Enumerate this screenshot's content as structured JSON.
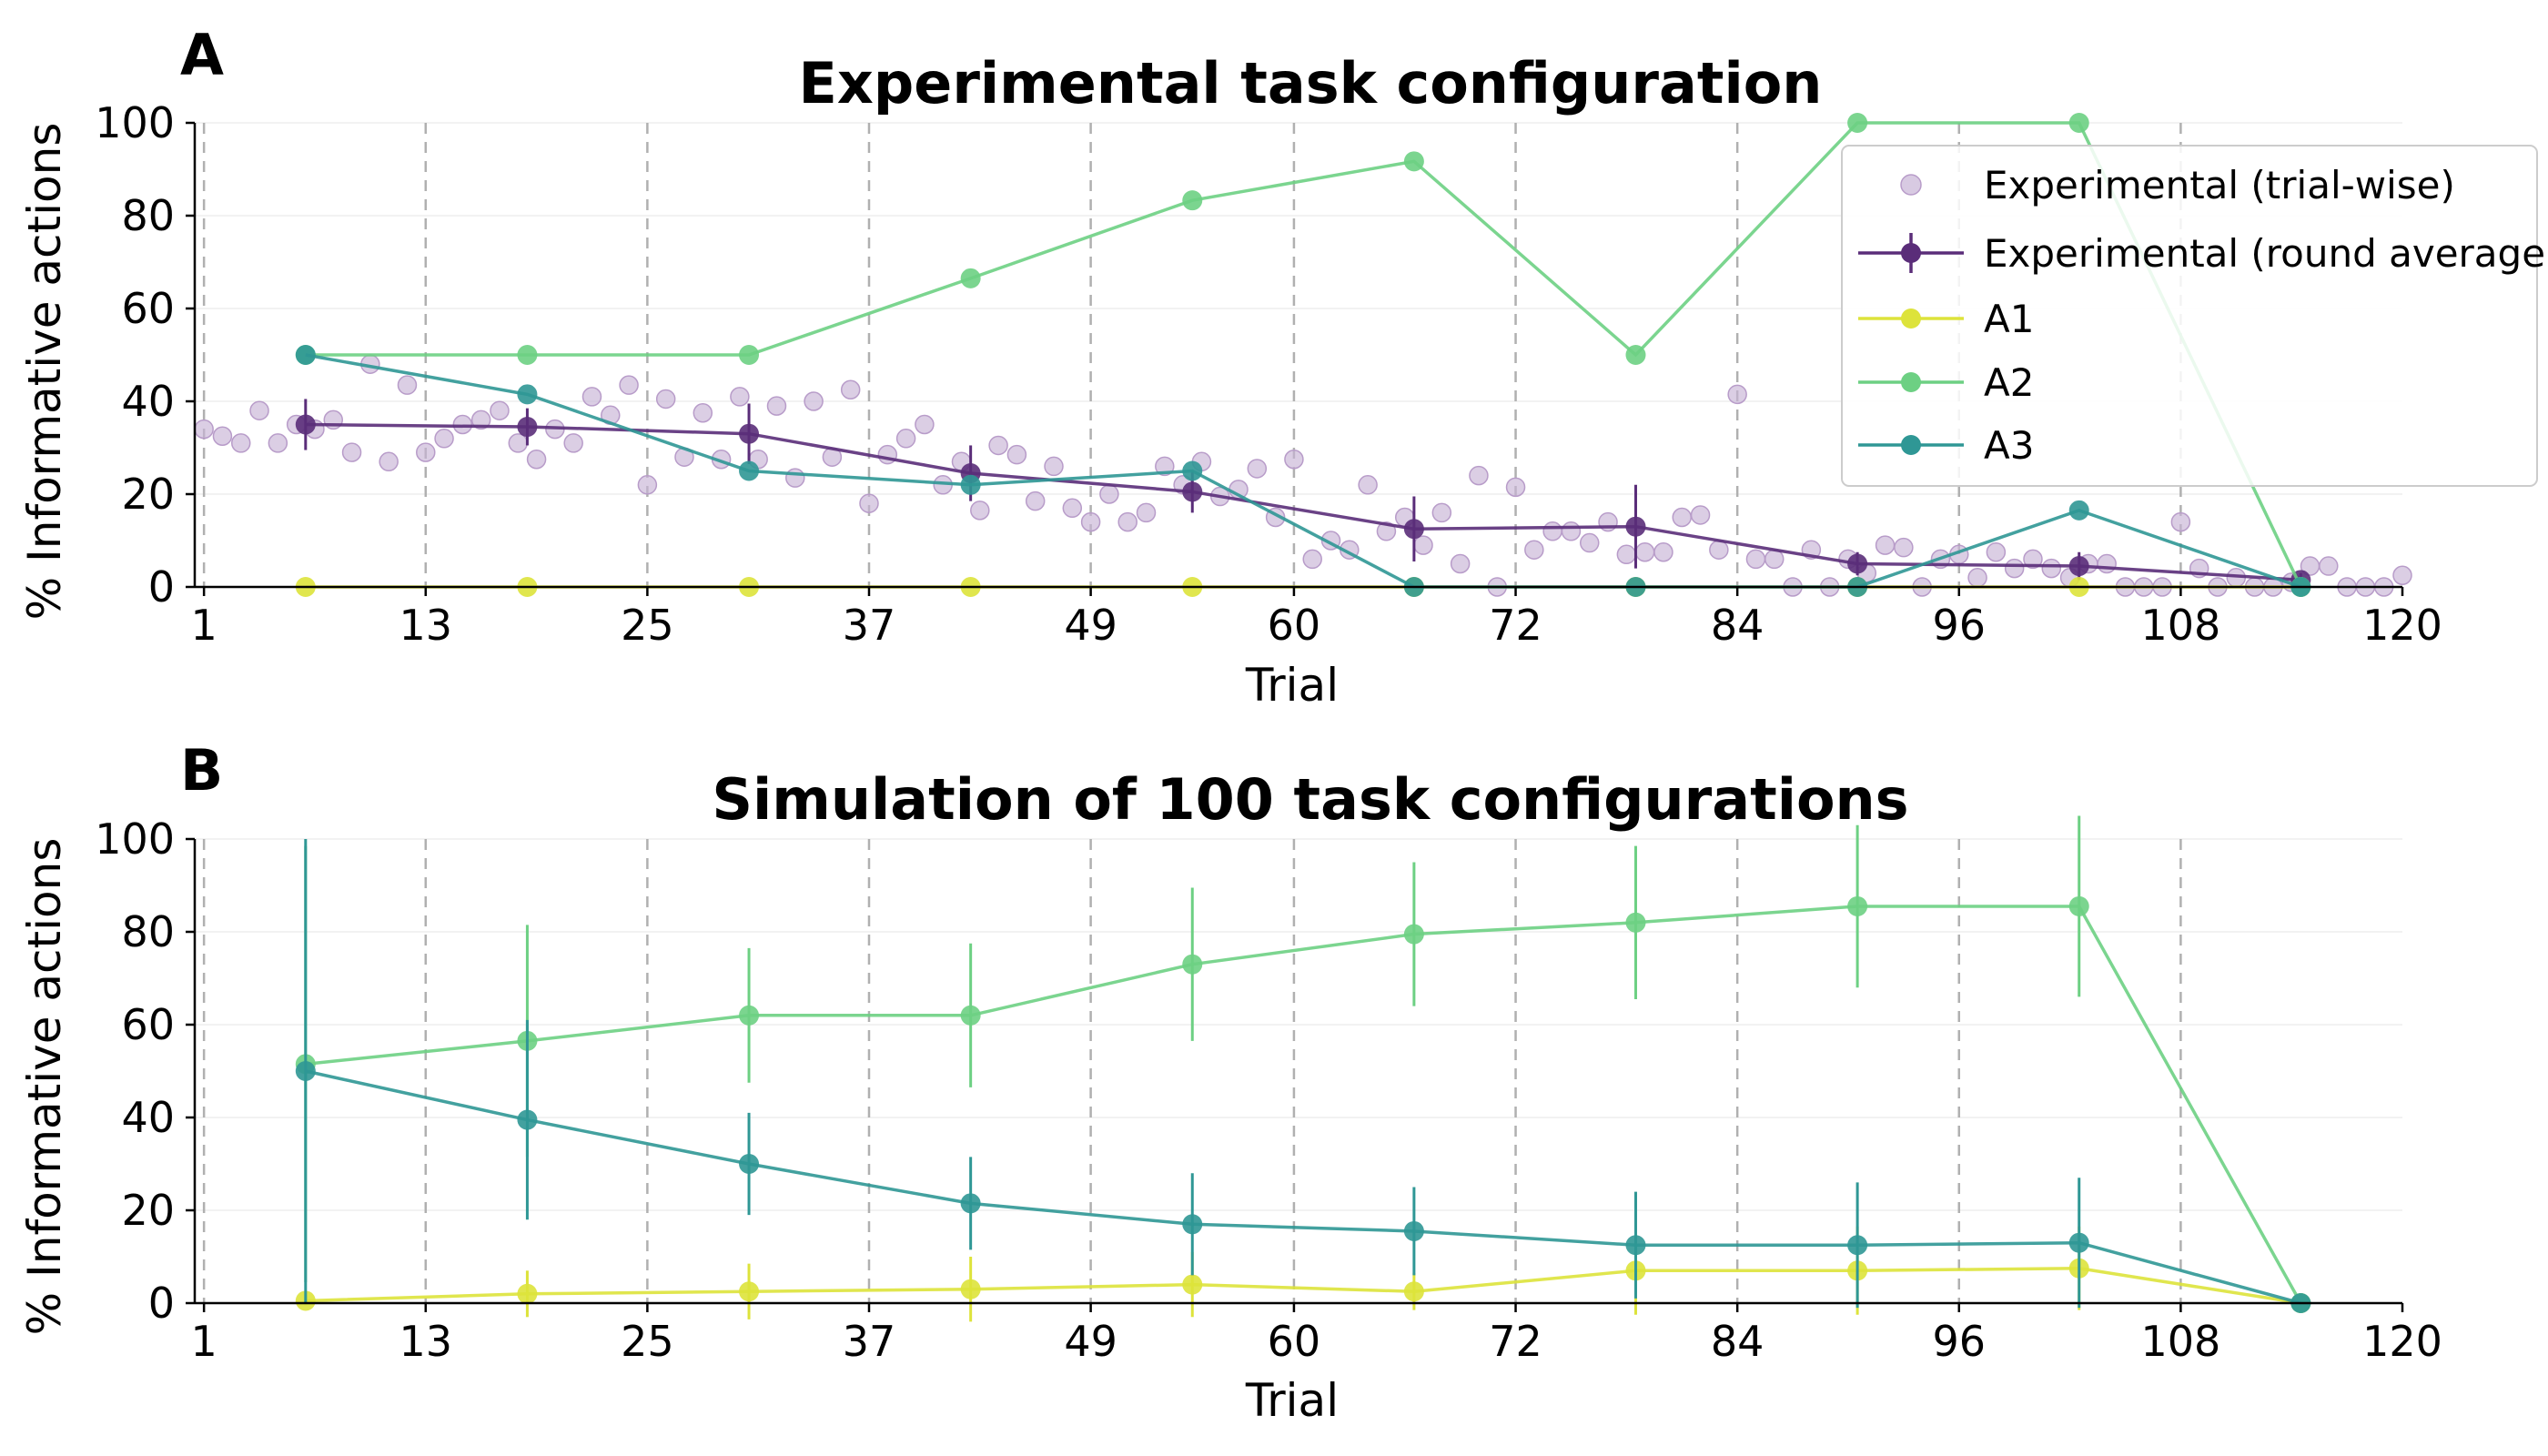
{
  "chart_data": [
    {
      "panel": "A",
      "type": "line",
      "title": "Experimental task configuration",
      "xlabel": "Trial",
      "ylabel": "% Informative actions",
      "xlim": [
        0.5,
        120
      ],
      "ylim": [
        0,
        100
      ],
      "xticks": [
        1,
        13,
        25,
        37,
        49,
        60,
        72,
        84,
        96,
        108,
        120
      ],
      "yticks": [
        0,
        20,
        40,
        60,
        80,
        100
      ],
      "round_boundaries": [
        1,
        13,
        25,
        37,
        49,
        60,
        72,
        84,
        96,
        108
      ],
      "grid": "horizontal light",
      "legend_position": "top-right",
      "legend": [
        "Experimental (trial-wise)",
        "Experimental (round average)",
        "A1",
        "A2",
        "A3"
      ],
      "trial_wise": {
        "name": "Experimental (trial-wise)",
        "color": "#c8b4d6",
        "points": [
          [
            1,
            34
          ],
          [
            2,
            32.5
          ],
          [
            3,
            31
          ],
          [
            4,
            38
          ],
          [
            5,
            31
          ],
          [
            6,
            35
          ],
          [
            7,
            34
          ],
          [
            8,
            36
          ],
          [
            9,
            29
          ],
          [
            10,
            48
          ],
          [
            11,
            27
          ],
          [
            12,
            43.5
          ],
          [
            13,
            29
          ],
          [
            14,
            32
          ],
          [
            15,
            35
          ],
          [
            16,
            36
          ],
          [
            17,
            38
          ],
          [
            18,
            31
          ],
          [
            19,
            27.5
          ],
          [
            20,
            34
          ],
          [
            21,
            31
          ],
          [
            22,
            41
          ],
          [
            23,
            37
          ],
          [
            24,
            43.5
          ],
          [
            25,
            22
          ],
          [
            26,
            40.5
          ],
          [
            27,
            28
          ],
          [
            28,
            37.5
          ],
          [
            29,
            27.5
          ],
          [
            30,
            41
          ],
          [
            31,
            27.5
          ],
          [
            32,
            39
          ],
          [
            33,
            23.5
          ],
          [
            34,
            40
          ],
          [
            35,
            28
          ],
          [
            36,
            42.5
          ],
          [
            37,
            18
          ],
          [
            38,
            28.5
          ],
          [
            39,
            32
          ],
          [
            40,
            35
          ],
          [
            41,
            22
          ],
          [
            42,
            27
          ],
          [
            43,
            16.5
          ],
          [
            44,
            30.5
          ],
          [
            45,
            28.5
          ],
          [
            46,
            18.5
          ],
          [
            47,
            26
          ],
          [
            48,
            17
          ],
          [
            49,
            14
          ],
          [
            50,
            20
          ],
          [
            51,
            14
          ],
          [
            52,
            16
          ],
          [
            53,
            26
          ],
          [
            54,
            22
          ],
          [
            55,
            27
          ],
          [
            56,
            19.5
          ],
          [
            57,
            21
          ],
          [
            58,
            25.5
          ],
          [
            59,
            15
          ],
          [
            60,
            27.5
          ],
          [
            61,
            6
          ],
          [
            62,
            10
          ],
          [
            63,
            8
          ],
          [
            64,
            22
          ],
          [
            65,
            12
          ],
          [
            66,
            15
          ],
          [
            67,
            9
          ],
          [
            68,
            16
          ],
          [
            69,
            5
          ],
          [
            70,
            24
          ],
          [
            71,
            0
          ],
          [
            72,
            21.5
          ],
          [
            73,
            8
          ],
          [
            74,
            12
          ],
          [
            75,
            12
          ],
          [
            76,
            9.5
          ],
          [
            77,
            14
          ],
          [
            78,
            7
          ],
          [
            79,
            7.5
          ],
          [
            80,
            7.5
          ],
          [
            81,
            15
          ],
          [
            82,
            15.5
          ],
          [
            83,
            8
          ],
          [
            84,
            41.5
          ],
          [
            85,
            6
          ],
          [
            86,
            6
          ],
          [
            87,
            0
          ],
          [
            88,
            8
          ],
          [
            89,
            0
          ],
          [
            90,
            6
          ],
          [
            91,
            3
          ],
          [
            92,
            9
          ],
          [
            93,
            8.5
          ],
          [
            94,
            0
          ],
          [
            95,
            6
          ],
          [
            96,
            7
          ],
          [
            97,
            2
          ],
          [
            98,
            7.5
          ],
          [
            99,
            4
          ],
          [
            100,
            6
          ],
          [
            101,
            4
          ],
          [
            102,
            2
          ],
          [
            103,
            5
          ],
          [
            104,
            5
          ],
          [
            105,
            0
          ],
          [
            106,
            0
          ],
          [
            107,
            0
          ],
          [
            108,
            14
          ],
          [
            109,
            4
          ],
          [
            110,
            0
          ],
          [
            111,
            2
          ],
          [
            112,
            0
          ],
          [
            113,
            0
          ],
          [
            114,
            1
          ],
          [
            115,
            4.5
          ],
          [
            116,
            4.5
          ],
          [
            117,
            0
          ],
          [
            118,
            0
          ],
          [
            119,
            0
          ],
          [
            120,
            2.5
          ]
        ]
      },
      "series": [
        {
          "name": "Experimental (round average)",
          "color": "#5a2d79",
          "x": [
            6.5,
            18.5,
            30.5,
            42.5,
            54.5,
            66.5,
            78.5,
            90.5,
            102.5,
            114.5
          ],
          "y": [
            35,
            34.5,
            33,
            24.5,
            20.5,
            12.5,
            13,
            5,
            4.5,
            1.5
          ],
          "err": [
            5.5,
            4,
            6.5,
            6,
            4.5,
            7,
            9,
            2.5,
            3,
            1.5
          ]
        },
        {
          "name": "A1",
          "color": "#dde33b",
          "x": [
            6.5,
            18.5,
            30.5,
            42.5,
            54.5,
            66.5,
            78.5,
            90.5,
            102.5,
            114.5
          ],
          "y": [
            0,
            0,
            0,
            0,
            0,
            0,
            0,
            0,
            0,
            0
          ]
        },
        {
          "name": "A2",
          "color": "#6dd083",
          "x": [
            6.5,
            18.5,
            30.5,
            42.5,
            54.5,
            66.5,
            78.5,
            90.5,
            102.5,
            114.5
          ],
          "y": [
            50,
            50,
            50,
            66.5,
            83.3,
            91.7,
            50,
            100,
            100,
            0
          ]
        },
        {
          "name": "A3",
          "color": "#2f9795",
          "x": [
            6.5,
            18.5,
            30.5,
            42.5,
            54.5,
            66.5,
            78.5,
            90.5,
            102.5,
            114.5
          ],
          "y": [
            50,
            41.5,
            25,
            22,
            25,
            0,
            0,
            0,
            16.5,
            0
          ]
        }
      ]
    },
    {
      "panel": "B",
      "type": "line",
      "title": "Simulation of 100 task configurations",
      "xlabel": "Trial",
      "ylabel": "% Informative actions",
      "xlim": [
        0.5,
        120
      ],
      "ylim": [
        0,
        100
      ],
      "xticks": [
        1,
        13,
        25,
        37,
        49,
        60,
        72,
        84,
        96,
        108,
        120
      ],
      "yticks": [
        0,
        20,
        40,
        60,
        80,
        100
      ],
      "round_boundaries": [
        1,
        13,
        25,
        37,
        49,
        60,
        72,
        84,
        96,
        108
      ],
      "grid": "horizontal light",
      "series": [
        {
          "name": "A1",
          "color": "#dde33b",
          "x": [
            6.5,
            18.5,
            30.5,
            42.5,
            54.5,
            66.5,
            78.5,
            90.5,
            102.5,
            114.5
          ],
          "y": [
            0.5,
            2,
            2.5,
            3,
            4,
            2.5,
            7,
            7,
            7.5,
            0
          ],
          "err": [
            1,
            5,
            6,
            7,
            7,
            4,
            9.5,
            9.5,
            9,
            0
          ]
        },
        {
          "name": "A2",
          "color": "#6dd083",
          "x": [
            6.5,
            18.5,
            30.5,
            42.5,
            54.5,
            66.5,
            78.5,
            90.5,
            102.5,
            114.5
          ],
          "y": [
            51.5,
            56.5,
            62,
            62,
            73,
            79.5,
            82,
            85.5,
            85.5,
            0
          ],
          "err": [
            47,
            25,
            14.5,
            15.5,
            16.5,
            15.5,
            16.5,
            17.5,
            19.5,
            0
          ]
        },
        {
          "name": "A3",
          "color": "#2f9795",
          "x": [
            6.5,
            18.5,
            30.5,
            42.5,
            54.5,
            66.5,
            78.5,
            90.5,
            102.5,
            114.5
          ],
          "y": [
            50,
            39.5,
            30,
            21.5,
            17,
            15.5,
            12.5,
            12.5,
            13,
            0
          ],
          "err": [
            50,
            21.5,
            11,
            10,
            11,
            9.5,
            11.5,
            13.5,
            14,
            0
          ]
        }
      ]
    }
  ]
}
